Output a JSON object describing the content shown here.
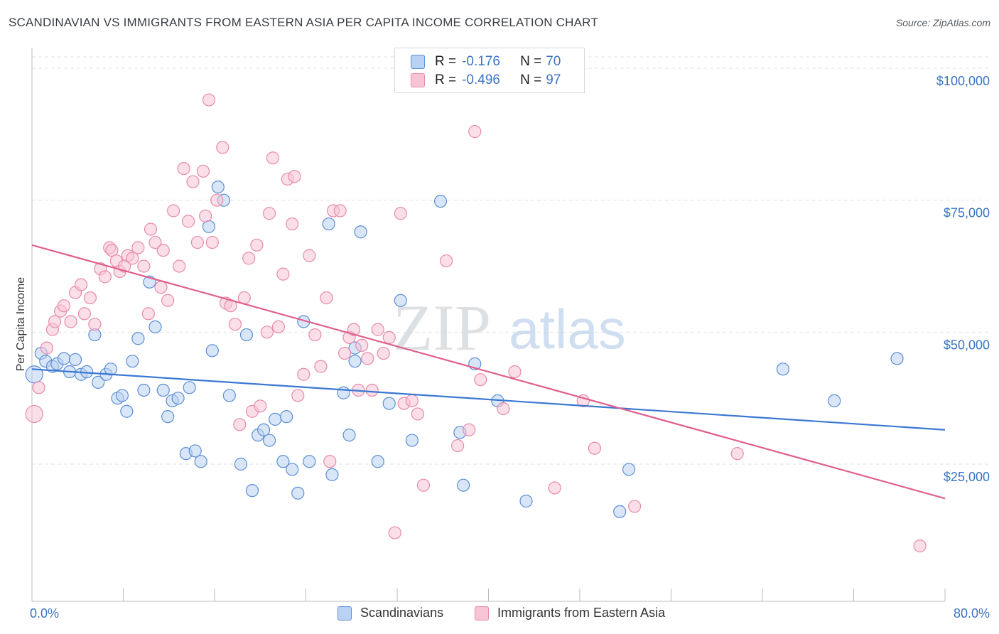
{
  "title": "SCANDINAVIAN VS IMMIGRANTS FROM EASTERN ASIA PER CAPITA INCOME CORRELATION CHART",
  "source": "Source: ZipAtlas.com",
  "watermark": {
    "zip": "ZIP",
    "atlas": "atlas"
  },
  "legend": {
    "rows": [
      {
        "r_label": "R =",
        "r_value": "-0.176",
        "n_label": "N =",
        "n_value": "70"
      },
      {
        "r_label": "R =",
        "r_value": "-0.496",
        "n_label": "N =",
        "n_value": "97"
      }
    ]
  },
  "bottom_legend": {
    "series1": "Scandinavians",
    "series2": "Immigrants from Eastern Asia"
  },
  "colors": {
    "blue": "#5b8fd6",
    "blue_fill": "#b9d2f3",
    "pink": "#e05f8e",
    "pink_fill": "#f7c4d5",
    "tick_text": "#3b74c4"
  },
  "chart_data": {
    "type": "scatter",
    "title": "SCANDINAVIAN VS IMMIGRANTS FROM EASTERN ASIA PER CAPITA INCOME CORRELATION CHART",
    "xlabel": "",
    "ylabel": "Per Capita Income",
    "xlim": [
      0,
      80
    ],
    "ylim": [
      0,
      104000
    ],
    "x_tick_labels": [
      "0.0%",
      "80.0%"
    ],
    "y_ticks": [
      25000,
      50000,
      75000,
      100000
    ],
    "y_tick_labels": [
      "$25,000",
      "$50,000",
      "$75,000",
      "$100,000"
    ],
    "grid": true,
    "legend_position": "top-center",
    "series": [
      {
        "name": "Scandinavians",
        "color": "#5b8fd6",
        "trend": {
          "x": [
            0,
            80
          ],
          "y": [
            43000,
            31500
          ]
        },
        "points": [
          [
            0.2,
            42000
          ],
          [
            0.8,
            46000
          ],
          [
            1.2,
            44500
          ],
          [
            1.8,
            43500
          ],
          [
            2.2,
            44000
          ],
          [
            2.8,
            45000
          ],
          [
            3.3,
            42500
          ],
          [
            3.8,
            44800
          ],
          [
            4.3,
            42000
          ],
          [
            4.8,
            42500
          ],
          [
            5.5,
            49500
          ],
          [
            5.8,
            40500
          ],
          [
            6.5,
            42000
          ],
          [
            6.9,
            43000
          ],
          [
            7.5,
            37500
          ],
          [
            7.9,
            38000
          ],
          [
            8.3,
            35000
          ],
          [
            8.8,
            44500
          ],
          [
            9.3,
            48800
          ],
          [
            9.8,
            39000
          ],
          [
            10.3,
            59500
          ],
          [
            10.8,
            51000
          ],
          [
            11.5,
            39000
          ],
          [
            11.9,
            34000
          ],
          [
            12.3,
            37000
          ],
          [
            12.8,
            37500
          ],
          [
            13.5,
            27000
          ],
          [
            13.8,
            39500
          ],
          [
            14.3,
            27500
          ],
          [
            14.8,
            25500
          ],
          [
            15.5,
            70000
          ],
          [
            15.8,
            46500
          ],
          [
            16.3,
            77500
          ],
          [
            16.8,
            75000
          ],
          [
            17.3,
            38000
          ],
          [
            18.3,
            25000
          ],
          [
            18.8,
            49500
          ],
          [
            19.3,
            20000
          ],
          [
            19.8,
            30500
          ],
          [
            20.3,
            31500
          ],
          [
            20.8,
            29500
          ],
          [
            21.3,
            33500
          ],
          [
            22.0,
            25500
          ],
          [
            22.3,
            34000
          ],
          [
            22.8,
            24000
          ],
          [
            23.3,
            19500
          ],
          [
            23.8,
            52000
          ],
          [
            24.3,
            25500
          ],
          [
            26.0,
            70500
          ],
          [
            26.3,
            23000
          ],
          [
            27.3,
            38500
          ],
          [
            27.8,
            30500
          ],
          [
            28.3,
            44500
          ],
          [
            28.3,
            47000
          ],
          [
            28.8,
            69000
          ],
          [
            30.3,
            25500
          ],
          [
            31.3,
            36500
          ],
          [
            32.3,
            56000
          ],
          [
            33.3,
            29500
          ],
          [
            35.8,
            74800
          ],
          [
            37.5,
            31000
          ],
          [
            37.8,
            21000
          ],
          [
            38.8,
            44000
          ],
          [
            40.8,
            37000
          ],
          [
            43.3,
            18000
          ],
          [
            51.5,
            16000
          ],
          [
            52.3,
            24000
          ],
          [
            65.8,
            43000
          ],
          [
            70.3,
            37000
          ],
          [
            75.8,
            45000
          ]
        ]
      },
      {
        "name": "Immigrants from Eastern Asia",
        "color": "#e05f8e",
        "trend": {
          "x": [
            0,
            80
          ],
          "y": [
            66500,
            18500
          ]
        },
        "points": [
          [
            0.2,
            34500
          ],
          [
            0.6,
            39500
          ],
          [
            1.3,
            47000
          ],
          [
            1.8,
            50500
          ],
          [
            2.0,
            52000
          ],
          [
            2.5,
            54000
          ],
          [
            2.8,
            55000
          ],
          [
            3.4,
            52000
          ],
          [
            3.8,
            57500
          ],
          [
            4.3,
            59000
          ],
          [
            4.6,
            53500
          ],
          [
            5.1,
            56500
          ],
          [
            5.5,
            51500
          ],
          [
            6.0,
            62000
          ],
          [
            6.4,
            60500
          ],
          [
            6.8,
            66000
          ],
          [
            7.0,
            65500
          ],
          [
            7.4,
            63500
          ],
          [
            7.7,
            61500
          ],
          [
            8.1,
            62500
          ],
          [
            8.4,
            64500
          ],
          [
            8.8,
            64000
          ],
          [
            9.3,
            66000
          ],
          [
            9.8,
            62500
          ],
          [
            10.2,
            53500
          ],
          [
            10.4,
            69500
          ],
          [
            10.8,
            67000
          ],
          [
            11.3,
            58500
          ],
          [
            11.5,
            65500
          ],
          [
            11.9,
            56000
          ],
          [
            12.4,
            73000
          ],
          [
            12.9,
            62500
          ],
          [
            13.3,
            81000
          ],
          [
            13.7,
            71000
          ],
          [
            14.1,
            78500
          ],
          [
            14.5,
            67000
          ],
          [
            15.0,
            80500
          ],
          [
            15.2,
            72000
          ],
          [
            15.5,
            94000
          ],
          [
            15.8,
            67000
          ],
          [
            16.2,
            75000
          ],
          [
            16.7,
            85000
          ],
          [
            17.0,
            55500
          ],
          [
            17.4,
            55000
          ],
          [
            17.8,
            51500
          ],
          [
            18.2,
            32500
          ],
          [
            18.6,
            56500
          ],
          [
            19.0,
            64000
          ],
          [
            19.3,
            35000
          ],
          [
            19.7,
            66500
          ],
          [
            20.0,
            36000
          ],
          [
            20.6,
            50000
          ],
          [
            20.8,
            72500
          ],
          [
            21.1,
            83000
          ],
          [
            21.6,
            51000
          ],
          [
            22.0,
            61000
          ],
          [
            22.4,
            79000
          ],
          [
            22.8,
            70500
          ],
          [
            23.0,
            79500
          ],
          [
            23.3,
            38000
          ],
          [
            23.8,
            42000
          ],
          [
            24.3,
            64500
          ],
          [
            24.8,
            49500
          ],
          [
            25.3,
            43500
          ],
          [
            25.8,
            56500
          ],
          [
            26.1,
            25500
          ],
          [
            26.4,
            73000
          ],
          [
            27.0,
            73000
          ],
          [
            27.4,
            46000
          ],
          [
            27.8,
            49000
          ],
          [
            28.2,
            50500
          ],
          [
            28.6,
            39000
          ],
          [
            28.9,
            47500
          ],
          [
            29.4,
            45000
          ],
          [
            29.8,
            39000
          ],
          [
            30.3,
            50500
          ],
          [
            30.8,
            46000
          ],
          [
            31.3,
            49000
          ],
          [
            31.8,
            12000
          ],
          [
            32.3,
            72500
          ],
          [
            32.6,
            36500
          ],
          [
            33.3,
            37000
          ],
          [
            33.8,
            34500
          ],
          [
            34.3,
            21000
          ],
          [
            36.3,
            63500
          ],
          [
            37.3,
            28500
          ],
          [
            38.3,
            31500
          ],
          [
            38.8,
            88000
          ],
          [
            39.3,
            41000
          ],
          [
            41.3,
            35500
          ],
          [
            42.3,
            42500
          ],
          [
            45.8,
            20500
          ],
          [
            48.3,
            37000
          ],
          [
            49.3,
            28000
          ],
          [
            52.8,
            17000
          ],
          [
            61.8,
            27000
          ],
          [
            77.8,
            9500
          ]
        ]
      }
    ]
  }
}
